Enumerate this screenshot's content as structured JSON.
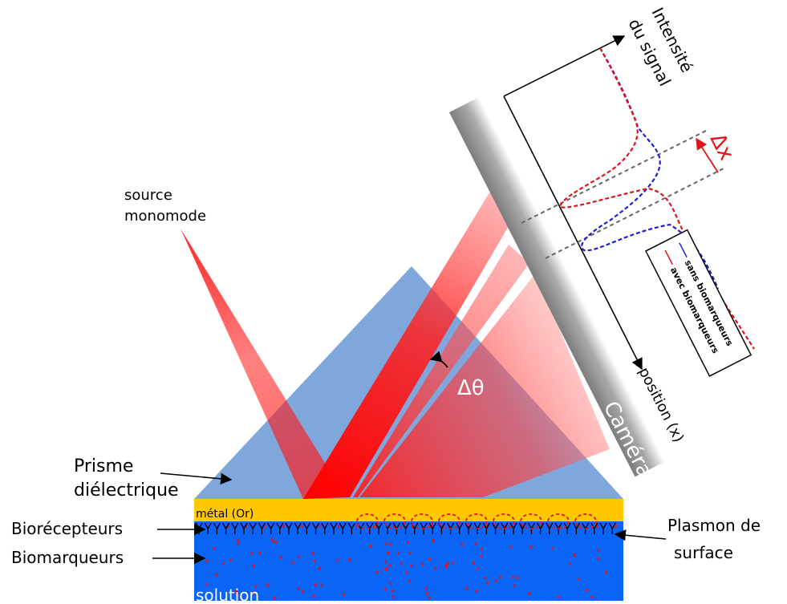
{
  "labels": {
    "source_line1": "source",
    "source_line2": "monomode",
    "prism_line1": "Prisme",
    "prism_line2": "diélectrique",
    "metal": "métal (Or)",
    "bioreceptors": "Biorécepteurs",
    "biomarkers": "Biomarqueurs",
    "solution": "solution",
    "plasmon_line1": "Plasmon de",
    "plasmon_line2": "surface",
    "delta_theta": "Δθ",
    "camera": "Caméra",
    "position_axis": "position (x)",
    "intensity_line1": "Intensité",
    "intensity_line2": "du signal",
    "delta_x": "Δx"
  },
  "legend": {
    "entries": [
      {
        "label": "sans biomarqueurs",
        "color": "#1f1fd6"
      },
      {
        "label": "avec biomarqueurs",
        "color": "#e0141a"
      }
    ]
  },
  "colors": {
    "prism": "#7fa7dc",
    "metal": "#ffc800",
    "solution": "#0a64f5",
    "beam": "#ff1a1a",
    "curve_without": "#1f1fd6",
    "curve_with": "#e0141a",
    "guide_lines": "#666666"
  }
}
